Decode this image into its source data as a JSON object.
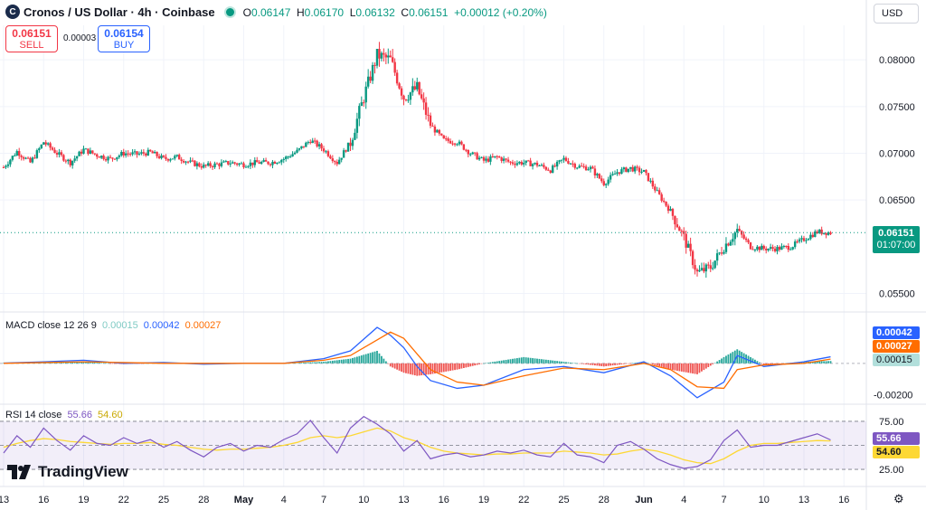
{
  "header": {
    "logo_letter": "C",
    "symbol": "Cronos / US Dollar · 4h · Coinbase",
    "open_label": "O",
    "open": "0.06147",
    "high_label": "H",
    "high": "0.06170",
    "low_label": "L",
    "low": "0.06132",
    "close_label": "C",
    "close": "0.06151",
    "change": "+0.00012 (+0.20%)"
  },
  "trade": {
    "sell_price": "0.06151",
    "sell_label": "SELL",
    "spread": "0.00003",
    "buy_price": "0.06154",
    "buy_label": "BUY"
  },
  "currency": "USD",
  "price_tag": {
    "value": "0.06151",
    "countdown": "01:07:00"
  },
  "macd_panel": {
    "label": "MACD close 12 26 9",
    "hist": "0.00015",
    "macd": "0.00042",
    "signal": "0.00027",
    "axis_ticks": [
      "-0.00200"
    ]
  },
  "rsi_panel": {
    "label": "RSI 14 close",
    "rsi": "55.66",
    "ma": "54.60",
    "axis_ticks": [
      "75.00",
      "25.00"
    ]
  },
  "branding": {
    "text": "TradingView"
  },
  "colors": {
    "up": "#089981",
    "down": "#f23645",
    "macd": "#2962ff",
    "signal": "#ff6d00",
    "rsi": "#7e57c2",
    "rsi_ma": "#fdd835"
  },
  "chart_data": {
    "type": "candlestick",
    "interval": "4h",
    "price_axis": {
      "ticks": [
        "0.08000",
        "0.07500",
        "0.07000",
        "0.06500",
        "0.05500"
      ],
      "ylim": [
        0.0535,
        0.0835
      ]
    },
    "x_ticks": [
      "13",
      "16",
      "19",
      "22",
      "25",
      "28",
      "May",
      "4",
      "7",
      "10",
      "13",
      "16",
      "19",
      "22",
      "25",
      "28",
      "Jun",
      "4",
      "7",
      "10",
      "13",
      "16"
    ],
    "x_tick_pos": [
      0,
      3,
      6,
      9,
      12,
      15,
      18,
      21,
      24,
      27,
      30,
      33,
      36,
      39,
      42,
      45,
      48,
      51,
      54,
      57,
      60,
      63
    ],
    "x_range": [
      0,
      64
    ],
    "price_path_days": [
      0,
      1,
      2,
      3,
      4,
      5,
      6,
      7,
      8,
      9,
      10,
      11,
      12,
      13,
      14,
      15,
      16,
      17,
      18,
      19,
      20,
      21,
      22,
      23,
      24,
      25,
      26,
      27,
      28,
      29,
      30,
      31,
      32,
      33,
      34,
      35,
      36,
      37,
      38,
      39,
      40,
      41,
      42,
      43,
      44,
      45,
      46,
      47,
      48,
      49,
      50,
      51,
      52,
      53,
      54,
      55,
      56,
      57,
      58,
      59,
      60,
      61,
      62
    ],
    "price_path": [
      0.0685,
      0.0702,
      0.069,
      0.0712,
      0.07,
      0.069,
      0.0704,
      0.0698,
      0.0694,
      0.07,
      0.0699,
      0.0701,
      0.0694,
      0.0696,
      0.069,
      0.0686,
      0.0688,
      0.069,
      0.0688,
      0.069,
      0.069,
      0.0694,
      0.0702,
      0.0714,
      0.0704,
      0.069,
      0.0712,
      0.076,
      0.0805,
      0.08,
      0.076,
      0.077,
      0.073,
      0.0714,
      0.0712,
      0.07,
      0.0692,
      0.0696,
      0.069,
      0.069,
      0.0688,
      0.0682,
      0.0694,
      0.0686,
      0.0684,
      0.0668,
      0.068,
      0.0684,
      0.068,
      0.0658,
      0.0638,
      0.061,
      0.0572,
      0.0578,
      0.06,
      0.0618,
      0.06,
      0.0598,
      0.0598,
      0.06,
      0.0608,
      0.0616,
      0.0615
    ],
    "macd_ylim": [
      -0.0025,
      0.003
    ],
    "macd": {
      "days": [
        0,
        3,
        6,
        9,
        12,
        15,
        18,
        21,
        24,
        26,
        28,
        29,
        30,
        31,
        32,
        34,
        36,
        39,
        42,
        45,
        48,
        50,
        52,
        54,
        55,
        57,
        60,
        62
      ],
      "macd": [
        2e-05,
        0.0001,
        0.0002,
        0.0,
        5e-05,
        -5e-05,
        0.0,
        0.0,
        0.0003,
        0.0008,
        0.0023,
        0.0018,
        0.001,
        -0.0002,
        -0.0011,
        -0.0016,
        -0.0014,
        -0.0004,
        -0.0002,
        -0.0006,
        0.0001,
        -0.0008,
        -0.0022,
        -0.0012,
        0.0005,
        -0.0002,
        0.0001,
        0.00042
      ],
      "signal": [
        0.0,
        5e-05,
        0.0001,
        5e-05,
        0.0,
        0.0,
        0.0,
        0.0,
        0.0002,
        0.0005,
        0.0015,
        0.002,
        0.0016,
        0.0006,
        -0.0004,
        -0.0012,
        -0.0014,
        -0.0008,
        -0.0003,
        -0.0004,
        0.0,
        -0.0004,
        -0.0015,
        -0.0016,
        -0.0004,
        -0.0001,
        0.0,
        0.00027
      ]
    },
    "rsi_ylim": [
      10,
      90
    ],
    "rsi_levels": [
      75,
      50,
      25
    ],
    "rsi": {
      "days": [
        0,
        1,
        2,
        3,
        4,
        5,
        6,
        7,
        8,
        9,
        10,
        11,
        12,
        13,
        14,
        15,
        16,
        17,
        18,
        19,
        20,
        21,
        22,
        23,
        24,
        25,
        26,
        27,
        28,
        29,
        30,
        31,
        32,
        33,
        34,
        35,
        36,
        37,
        38,
        39,
        40,
        41,
        42,
        43,
        44,
        45,
        46,
        47,
        48,
        49,
        50,
        51,
        52,
        53,
        54,
        55,
        56,
        57,
        58,
        59,
        60,
        61,
        62
      ],
      "rsi": [
        42,
        60,
        48,
        68,
        55,
        45,
        60,
        52,
        50,
        58,
        52,
        56,
        48,
        54,
        45,
        38,
        48,
        52,
        44,
        50,
        48,
        56,
        62,
        76,
        58,
        42,
        68,
        80,
        72,
        62,
        44,
        55,
        36,
        40,
        42,
        38,
        40,
        44,
        42,
        45,
        40,
        38,
        52,
        40,
        38,
        32,
        50,
        54,
        46,
        36,
        30,
        26,
        28,
        35,
        55,
        66,
        48,
        50,
        50,
        54,
        58,
        62,
        55.66
      ],
      "ma": [
        48,
        52,
        55,
        57,
        56,
        54,
        53,
        52,
        51,
        52,
        52,
        53,
        51,
        50,
        48,
        46,
        45,
        46,
        46,
        47,
        48,
        50,
        53,
        58,
        60,
        58,
        60,
        64,
        68,
        65,
        58,
        54,
        48,
        44,
        42,
        41,
        40,
        41,
        41,
        42,
        42,
        42,
        44,
        43,
        42,
        40,
        41,
        44,
        46,
        44,
        40,
        35,
        32,
        31,
        36,
        44,
        50,
        52,
        52,
        53,
        54,
        55,
        54.6
      ]
    }
  }
}
